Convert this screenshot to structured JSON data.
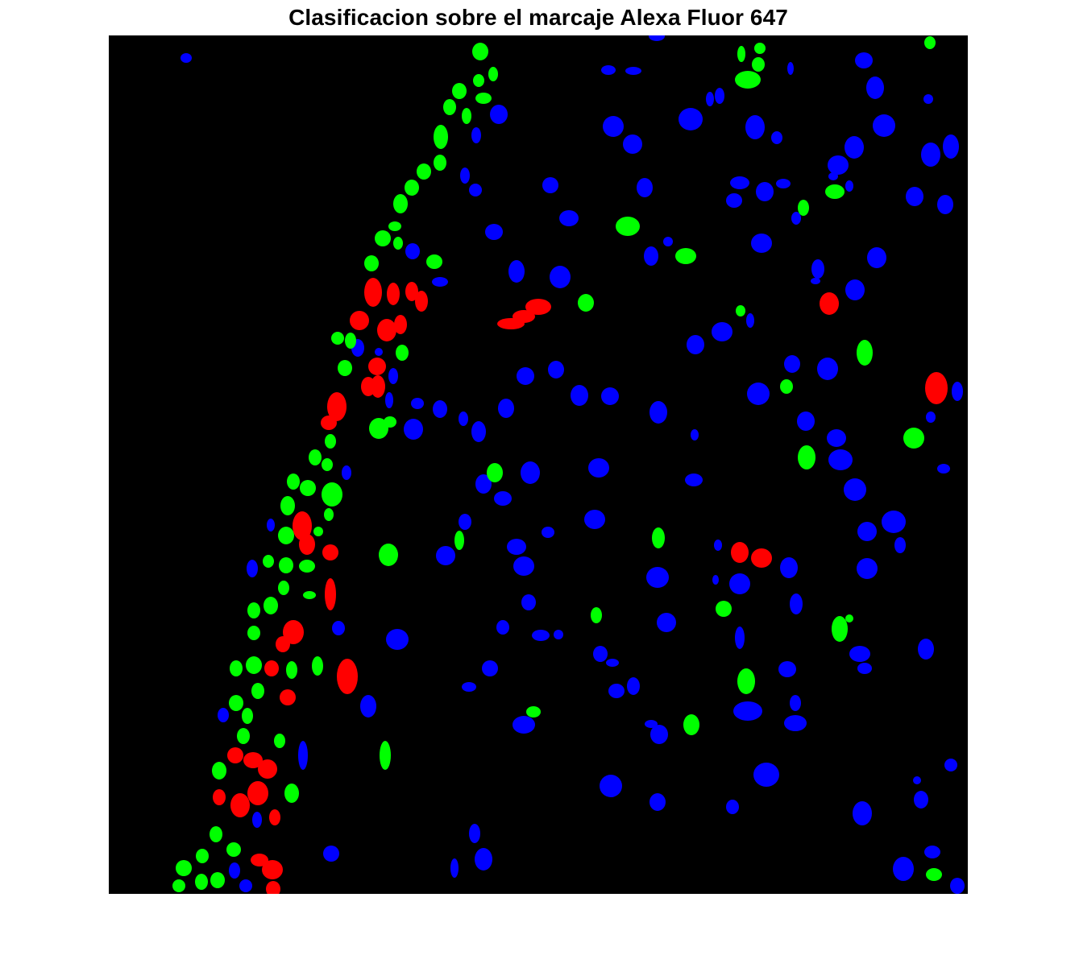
{
  "figure": {
    "title": "Clasificacion sobre el marcaje Alexa Fluor 647"
  },
  "image": {
    "background_color": "#000000",
    "class_colors": {
      "red": "#ff0000",
      "green": "#00ff00",
      "blue": "#0000ff"
    }
  }
}
